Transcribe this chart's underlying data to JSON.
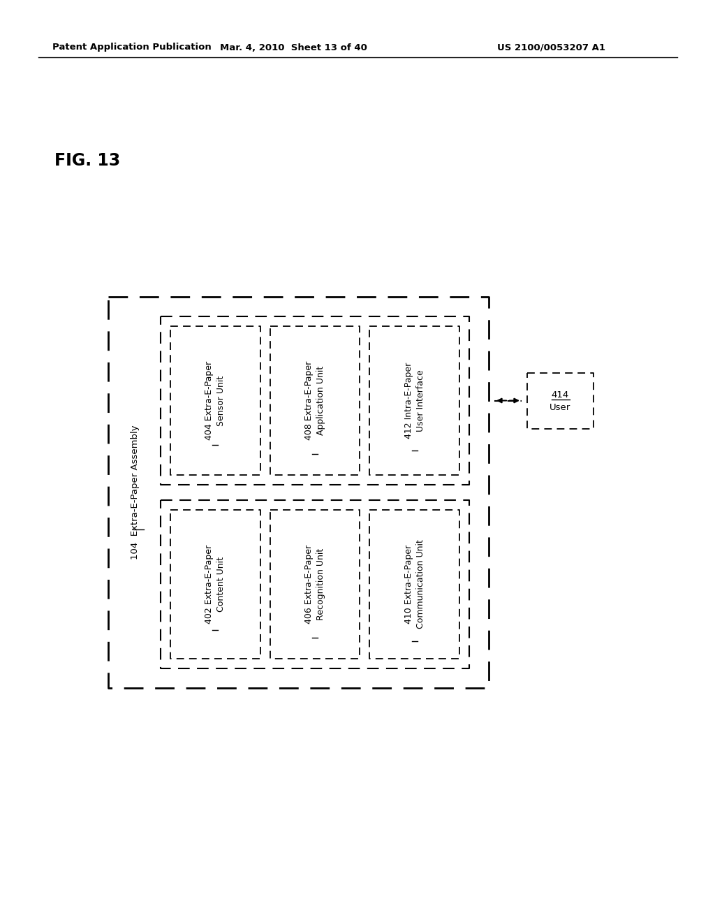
{
  "header_left": "Patent Application Publication",
  "header_mid": "Mar. 4, 2010  Sheet 13 of 40",
  "header_right": "US 2100/0053207 A1",
  "fig_label": "FIG. 13",
  "bg_color": "#ffffff",
  "text_color": "#000000",
  "label_104": "104  Extra-E-Paper Assembly",
  "boxes": [
    {
      "id": "402",
      "line1": "402 Extra-E-Paper",
      "line2": "Content Unit",
      "col": 0,
      "underline": "402"
    },
    {
      "id": "404",
      "line1": "404 Extra-E-Paper",
      "line2": "Sensor Unit",
      "col": 1,
      "underline": "404"
    },
    {
      "id": "406",
      "line1": "406 Extra-E-Paper",
      "line2": "Recognition Unit",
      "col": 2,
      "underline": "406"
    },
    {
      "id": "408",
      "line1": "408 Extra-E-Paper",
      "line2": "Application Unit",
      "col": 3,
      "underline": "408"
    },
    {
      "id": "410",
      "line1": "410 Extra-E-Paper",
      "line2": "Communication Unit",
      "col": 4,
      "underline": "410"
    },
    {
      "id": "412",
      "line1": "412 Intra-E-Paper",
      "line2": "User Interface",
      "col": 5,
      "underline": "412"
    }
  ],
  "user_label_num": "414",
  "user_label_text": "User"
}
